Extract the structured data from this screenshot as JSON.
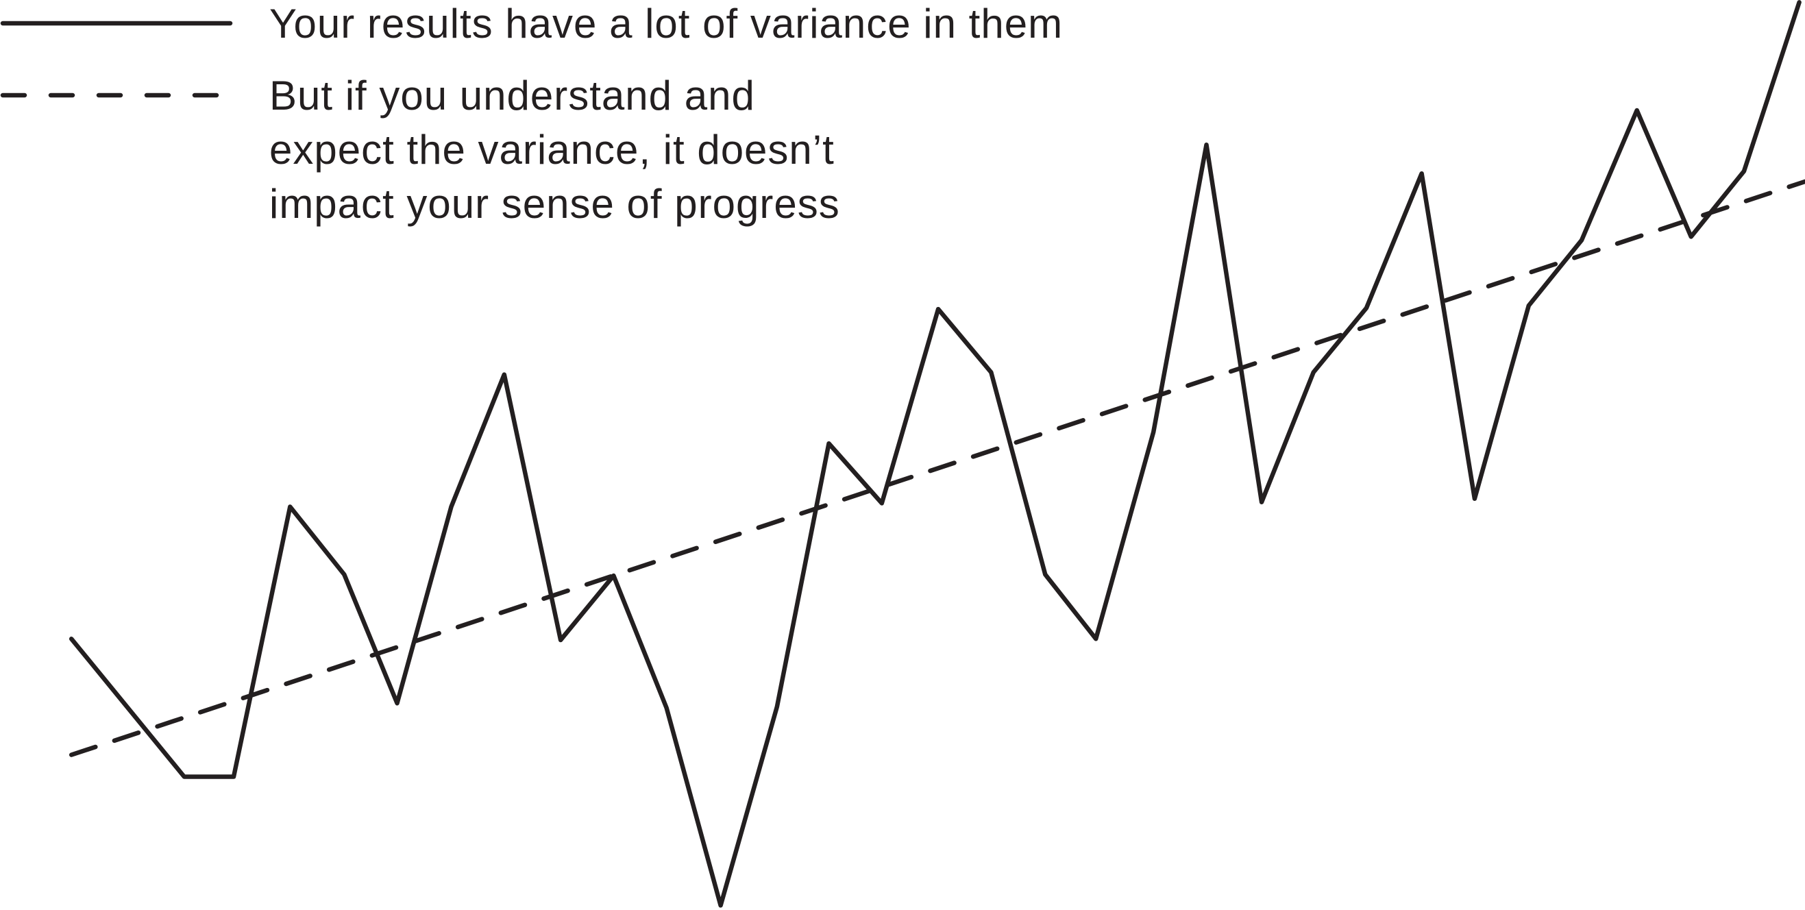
{
  "chart_data": {
    "type": "line",
    "xlim": [
      0,
      1568
    ],
    "ylim": [
      0,
      792
    ],
    "series": [
      {
        "name": [
          "Your results have a lot of variance in them"
        ],
        "color": "#231f20",
        "style": "solid",
        "x": [
          62,
          160,
          203,
          252,
          299,
          345,
          392,
          438,
          487,
          533,
          579,
          626,
          675,
          720,
          766,
          815,
          861,
          908,
          952,
          1002,
          1048,
          1096,
          1141,
          1187,
          1235,
          1281,
          1328,
          1374,
          1422,
          1469,
          1515,
          1563
        ],
        "values": [
          236,
          116,
          116,
          351,
          292,
          180,
          351,
          466,
          235,
          291,
          176,
          4,
          177,
          406,
          354,
          523,
          468,
          292,
          236,
          416,
          666,
          355,
          468,
          524,
          641,
          358,
          526,
          583,
          696,
          586,
          643,
          790
        ]
      },
      {
        "name": [
          "But if you understand and",
          "expect the variance, it doesn’t",
          "impact your sense of progress"
        ],
        "color": "#231f20",
        "style": "dashed",
        "x": [
          62,
          1568
        ],
        "values": [
          135,
          634
        ]
      }
    ]
  }
}
